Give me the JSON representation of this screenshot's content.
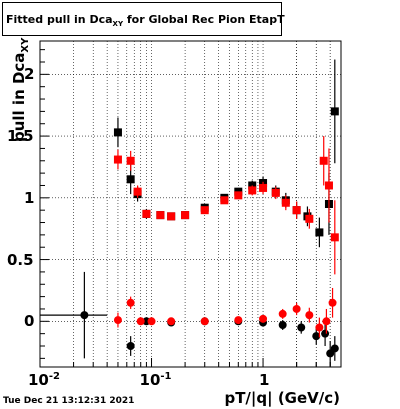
{
  "canvas": {
    "title_main": "Fitted pull in Dca",
    "title_sub": "XY",
    "title_rest": " for Global Rec Pion EtapT"
  },
  "axis": {
    "ylabel_main": "pull in Dca",
    "ylabel_sub": "XY",
    "xlabel": "pT/|q| (GeV/c)"
  },
  "timestamp": "Tue Dec 21 13:12:31 2021",
  "colors": {
    "black_series": "#000000",
    "red_series": "#ff0000",
    "grid": "#000000"
  },
  "chart_data": {
    "type": "scatter",
    "title": "Fitted pull in Dca_XY for Global Rec Pion EtapT",
    "xlabel": "pT/|q| (GeV/c)",
    "ylabel": "pull in Dca_XY",
    "x_scale": "log",
    "xlim": [
      0.01,
      5.0
    ],
    "ylim": [
      -0.37,
      2.27
    ],
    "x_ticks": [
      {
        "v": 0.01,
        "label": "10^-2"
      },
      {
        "v": 0.1,
        "label": "10^-1"
      },
      {
        "v": 1,
        "label": "1"
      }
    ],
    "y_ticks": [
      0,
      0.5,
      1,
      1.5,
      2
    ],
    "grid": true,
    "series": [
      {
        "color": "black",
        "points": [
          {
            "x": 0.025,
            "y": 0.05,
            "ey": 0.35,
            "ex": 0.015
          },
          {
            "x": 0.05,
            "y": 1.53,
            "ey": 0.12
          },
          {
            "x": 0.065,
            "y": 1.15,
            "ey": 0.12
          },
          {
            "x": 0.075,
            "y": 1.03,
            "ey": 0.06
          },
          {
            "x": 0.09,
            "y": 0.87,
            "ey": 0.04
          },
          {
            "x": 0.12,
            "y": 0.86,
            "ey": 0.02
          },
          {
            "x": 0.15,
            "y": 0.85,
            "ey": 0.02
          },
          {
            "x": 0.2,
            "y": 0.86,
            "ey": 0.02
          },
          {
            "x": 0.3,
            "y": 0.92,
            "ey": 0.02
          },
          {
            "x": 0.45,
            "y": 1.0,
            "ey": 0.03
          },
          {
            "x": 0.6,
            "y": 1.05,
            "ey": 0.03
          },
          {
            "x": 0.8,
            "y": 1.1,
            "ey": 0.04
          },
          {
            "x": 1.0,
            "y": 1.12,
            "ey": 0.05
          },
          {
            "x": 1.3,
            "y": 1.05,
            "ey": 0.05
          },
          {
            "x": 1.6,
            "y": 0.98,
            "ey": 0.06
          },
          {
            "x": 2.0,
            "y": 0.9,
            "ey": 0.07
          },
          {
            "x": 2.5,
            "y": 0.85,
            "ey": 0.08
          },
          {
            "x": 3.2,
            "y": 0.72,
            "ey": 0.12
          },
          {
            "x": 3.9,
            "y": 0.95,
            "ey": 0.25
          },
          {
            "x": 4.4,
            "y": 1.7,
            "ey": 0.42
          },
          {
            "x": 0.065,
            "y": -0.2,
            "ey": 0.08
          },
          {
            "x": 0.09,
            "y": 0.0,
            "ey": 0.03
          },
          {
            "x": 0.15,
            "y": -0.01,
            "ey": 0.02
          },
          {
            "x": 0.3,
            "y": 0.0,
            "ey": 0.02
          },
          {
            "x": 0.6,
            "y": 0.0,
            "ey": 0.02
          },
          {
            "x": 1.0,
            "y": -0.01,
            "ey": 0.03
          },
          {
            "x": 1.5,
            "y": -0.03,
            "ey": 0.04
          },
          {
            "x": 2.2,
            "y": -0.05,
            "ey": 0.05
          },
          {
            "x": 3.0,
            "y": -0.12,
            "ey": 0.07
          },
          {
            "x": 3.6,
            "y": -0.1,
            "ey": 0.1
          },
          {
            "x": 4.0,
            "y": -0.26,
            "ey": 0.1
          },
          {
            "x": 4.4,
            "y": -0.22,
            "ey": 0.1
          }
        ]
      },
      {
        "color": "red",
        "points": [
          {
            "x": 0.05,
            "y": 0.01,
            "ey": 0.06
          },
          {
            "x": 0.065,
            "y": 0.15,
            "ey": 0.05
          },
          {
            "x": 0.08,
            "y": 0.0,
            "ey": 0.03
          },
          {
            "x": 0.1,
            "y": 0.0,
            "ey": 0.02
          },
          {
            "x": 0.05,
            "y": 1.31,
            "ey": 0.08
          },
          {
            "x": 0.065,
            "y": 1.3,
            "ey": 0.08
          },
          {
            "x": 0.075,
            "y": 1.05,
            "ey": 0.05
          },
          {
            "x": 0.09,
            "y": 0.87,
            "ey": 0.03
          },
          {
            "x": 0.12,
            "y": 0.86,
            "ey": 0.02
          },
          {
            "x": 0.15,
            "y": 0.85,
            "ey": 0.02
          },
          {
            "x": 0.2,
            "y": 0.86,
            "ey": 0.02
          },
          {
            "x": 0.3,
            "y": 0.9,
            "ey": 0.02
          },
          {
            "x": 0.45,
            "y": 0.98,
            "ey": 0.03
          },
          {
            "x": 0.6,
            "y": 1.02,
            "ey": 0.03
          },
          {
            "x": 0.8,
            "y": 1.06,
            "ey": 0.04
          },
          {
            "x": 1.0,
            "y": 1.08,
            "ey": 0.05
          },
          {
            "x": 1.3,
            "y": 1.04,
            "ey": 0.05
          },
          {
            "x": 1.6,
            "y": 0.96,
            "ey": 0.06
          },
          {
            "x": 2.0,
            "y": 0.9,
            "ey": 0.07
          },
          {
            "x": 2.6,
            "y": 0.83,
            "ey": 0.08
          },
          {
            "x": 3.5,
            "y": 1.3,
            "ey": 0.2
          },
          {
            "x": 3.9,
            "y": 1.1,
            "ey": 0.3
          },
          {
            "x": 4.4,
            "y": 0.68,
            "ey": 0.3
          },
          {
            "x": 0.15,
            "y": 0.0,
            "ey": 0.02
          },
          {
            "x": 0.3,
            "y": 0.0,
            "ey": 0.02
          },
          {
            "x": 0.6,
            "y": 0.01,
            "ey": 0.02
          },
          {
            "x": 1.0,
            "y": 0.02,
            "ey": 0.03
          },
          {
            "x": 1.5,
            "y": 0.06,
            "ey": 0.04
          },
          {
            "x": 2.0,
            "y": 0.1,
            "ey": 0.05
          },
          {
            "x": 2.6,
            "y": 0.05,
            "ey": 0.06
          },
          {
            "x": 3.2,
            "y": -0.05,
            "ey": 0.08
          },
          {
            "x": 3.7,
            "y": 0.0,
            "ey": 0.1
          },
          {
            "x": 4.2,
            "y": 0.15,
            "ey": 0.12
          }
        ]
      }
    ]
  }
}
